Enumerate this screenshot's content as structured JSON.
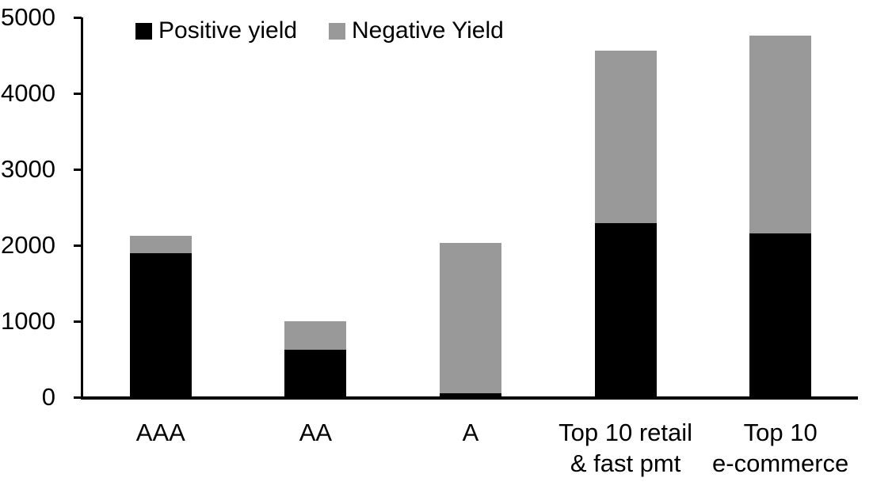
{
  "chart_data": {
    "type": "bar",
    "stacked": true,
    "title": "",
    "xlabel": "",
    "ylabel": "",
    "categories": [
      "AAA",
      "AA",
      "A",
      "Top 10 retail\n& fast pmt",
      "Top 10\ne-commerce"
    ],
    "series": [
      {
        "name": "Positive yield",
        "color": "#000000",
        "values": [
          1900,
          620,
          50,
          2290,
          2160
        ]
      },
      {
        "name": "Negative Yield",
        "color": "#999999",
        "values": [
          220,
          380,
          1980,
          2270,
          2600
        ]
      }
    ],
    "stack_totals": [
      2120,
      1000,
      2030,
      4560,
      4760
    ],
    "ylim": [
      0,
      5000
    ],
    "yticks": [
      0,
      1000,
      2000,
      3000,
      4000,
      5000
    ],
    "legend_position": "top",
    "grid": false,
    "axis_color": "#000000",
    "background_color": "#FFFFFF"
  }
}
